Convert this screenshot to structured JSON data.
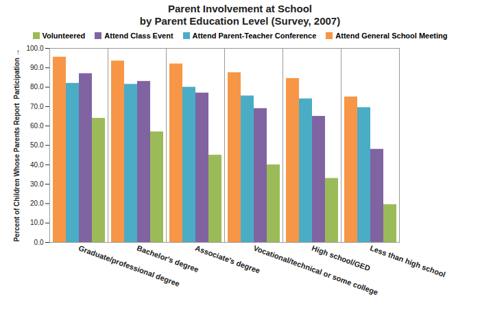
{
  "chart_data": {
    "type": "bar",
    "title": "Parent Involvement at School",
    "subtitle": "by Parent Education Level (Survey, 2007)",
    "y_label": "Percent of Children Whose Parents Report  Participation",
    "categories": [
      "Graduate/professional degree",
      "Bachelor's degree",
      "Associate's degree",
      "Vocational/technical or some college",
      "High school/GED",
      "Less than high school"
    ],
    "series": [
      {
        "name": "Attend General School Meeting",
        "color": "#F79646",
        "values": [
          95.5,
          93.5,
          92.0,
          87.5,
          84.5,
          75.0
        ]
      },
      {
        "name": "Attend Parent-Teacher Conference",
        "color": "#4BACC6",
        "values": [
          82.0,
          81.5,
          80.0,
          75.5,
          74.0,
          69.5
        ]
      },
      {
        "name": "Attend Class Event",
        "color": "#8064A2",
        "values": [
          87.0,
          83.0,
          77.0,
          69.0,
          65.0,
          48.0
        ]
      },
      {
        "name": "Volunteered",
        "color": "#9BBB59",
        "values": [
          64.0,
          57.0,
          45.0,
          40.0,
          33.0,
          19.5
        ]
      }
    ],
    "ylim": [
      0,
      100
    ],
    "yticks": [
      {
        "value": 0,
        "label": "0.0"
      },
      {
        "value": 10,
        "label": "10.0"
      },
      {
        "value": 20,
        "label": "20.0"
      },
      {
        "value": 30,
        "label": "30.0"
      },
      {
        "value": 40,
        "label": "40.0"
      },
      {
        "value": 50,
        "label": "50.0"
      },
      {
        "value": 60,
        "label": "60.0"
      },
      {
        "value": 70,
        "label": "70.0"
      },
      {
        "value": 80,
        "label": "80.0"
      },
      {
        "value": 90,
        "label": "90.0"
      },
      {
        "value": 100,
        "label": "100.0"
      }
    ],
    "grid": false,
    "legend": "top"
  }
}
